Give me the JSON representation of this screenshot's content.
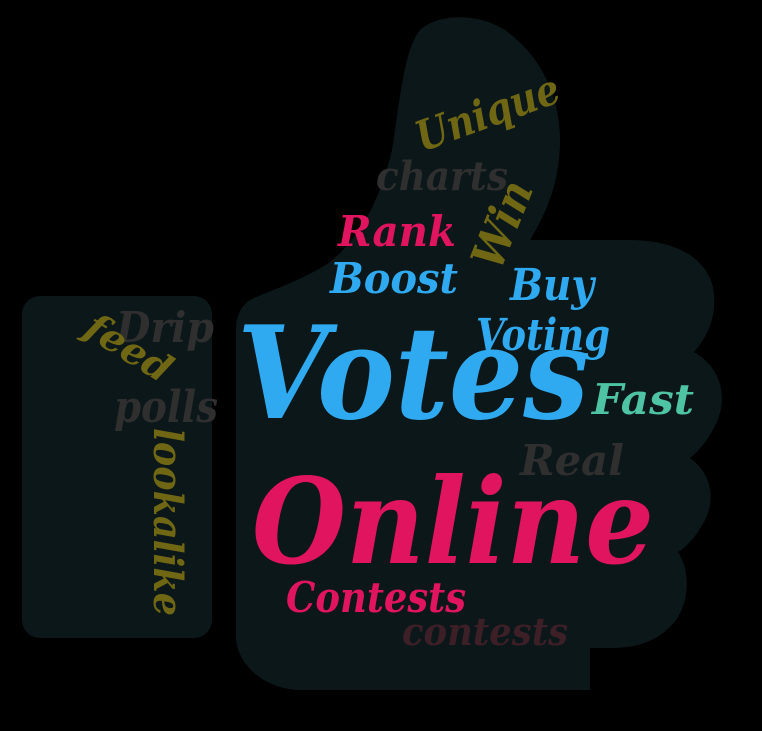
{
  "colors": {
    "background": "#000000",
    "shape": "#0c1719",
    "blue": "#2fa9ef",
    "pink": "#e0145f",
    "teal": "#4ec4a4",
    "olive": "#6f6714",
    "gray": "#2f2f2f",
    "maroon": "#3d1f27"
  },
  "words": {
    "votes": "Votes",
    "online": "Online",
    "contests_cap": "Contests",
    "contests_lower": "contests",
    "unique": "Unique",
    "charts": "charts",
    "rank": "Rank",
    "win": "Win",
    "boost": "Boost",
    "buy": "Buy",
    "voting": "Voting",
    "fast": "Fast",
    "real": "Real",
    "drip": "Drip",
    "feed": "feed",
    "polls": "polls",
    "lookalike": "lookalike"
  }
}
